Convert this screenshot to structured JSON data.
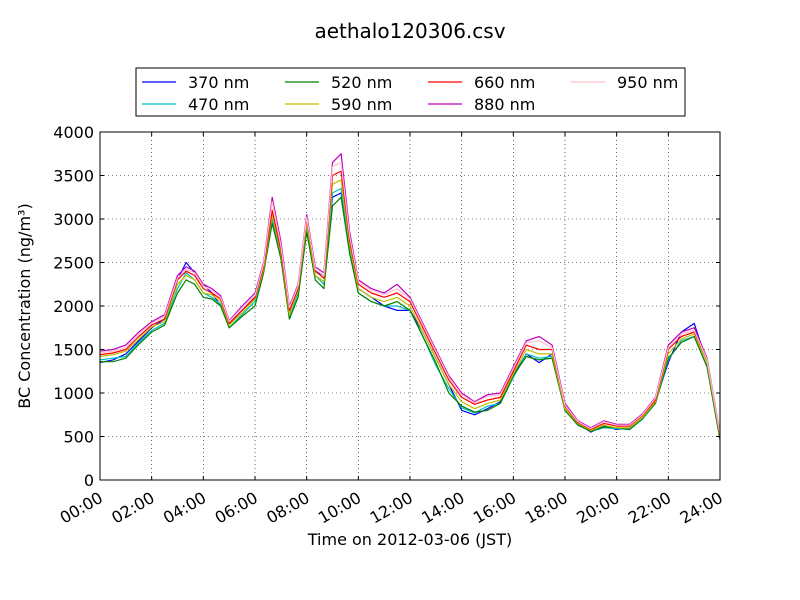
{
  "chart_data": {
    "type": "line",
    "title": "aethalo120306.csv",
    "xlabel": "Time on 2012-03-06 (JST)",
    "ylabel": "BC Concentration (ng/m³)",
    "xlim": [
      "00:00",
      "24:00"
    ],
    "ylim": [
      0,
      4000
    ],
    "grid": true,
    "legend_position": "top",
    "x_ticks": [
      "00:00",
      "02:00",
      "04:00",
      "06:00",
      "08:00",
      "10:00",
      "12:00",
      "14:00",
      "16:00",
      "18:00",
      "20:00",
      "22:00",
      "24:00"
    ],
    "y_ticks": [
      0,
      500,
      1000,
      1500,
      2000,
      2500,
      3000,
      3500,
      4000
    ],
    "x": [
      "00:00",
      "00:30",
      "01:00",
      "01:30",
      "02:00",
      "02:30",
      "03:00",
      "03:20",
      "03:40",
      "04:00",
      "04:20",
      "04:40",
      "05:00",
      "05:30",
      "06:00",
      "06:20",
      "06:40",
      "07:00",
      "07:20",
      "07:40",
      "08:00",
      "08:20",
      "08:40",
      "09:00",
      "09:20",
      "09:40",
      "10:00",
      "10:30",
      "11:00",
      "11:30",
      "12:00",
      "12:30",
      "13:00",
      "13:30",
      "14:00",
      "14:30",
      "15:00",
      "15:30",
      "16:00",
      "16:30",
      "17:00",
      "17:30",
      "18:00",
      "18:30",
      "19:00",
      "19:30",
      "20:00",
      "20:30",
      "21:00",
      "21:30",
      "22:00",
      "22:30",
      "23:00",
      "23:30",
      "24:00"
    ],
    "series": [
      {
        "name": "370 nm",
        "color": "#0000ff",
        "values": [
          1350,
          1380,
          1450,
          1600,
          1750,
          1850,
          2300,
          2500,
          2380,
          2250,
          2150,
          2000,
          1800,
          1950,
          2100,
          2500,
          2950,
          2650,
          1900,
          2200,
          2950,
          2400,
          2350,
          3250,
          3300,
          2700,
          2200,
          2100,
          2000,
          1950,
          1950,
          1700,
          1400,
          1100,
          800,
          750,
          820,
          900,
          1200,
          1450,
          1350,
          1450,
          800,
          650,
          550,
          620,
          580,
          600,
          700,
          900,
          1350,
          1700,
          1800,
          1350,
          500
        ]
      },
      {
        "name": "470 nm",
        "color": "#00bfbf",
        "values": [
          1380,
          1400,
          1420,
          1580,
          1720,
          1800,
          2200,
          2380,
          2300,
          2150,
          2100,
          2020,
          1750,
          1900,
          2050,
          2400,
          3000,
          2600,
          1850,
          2150,
          2900,
          2350,
          2250,
          3300,
          3350,
          2650,
          2150,
          2050,
          2000,
          2000,
          1950,
          1650,
          1320,
          1050,
          830,
          770,
          850,
          880,
          1180,
          1450,
          1400,
          1420,
          820,
          640,
          560,
          600,
          590,
          580,
          700,
          880,
          1380,
          1600,
          1650,
          1300,
          480
        ]
      },
      {
        "name": "520 nm",
        "color": "#008000",
        "values": [
          1360,
          1360,
          1400,
          1560,
          1700,
          1780,
          2150,
          2300,
          2250,
          2100,
          2080,
          2000,
          1750,
          1880,
          2000,
          2380,
          2950,
          2550,
          1850,
          2100,
          2850,
          2300,
          2200,
          3150,
          3250,
          2600,
          2150,
          2050,
          2000,
          2050,
          1950,
          1650,
          1350,
          1000,
          850,
          780,
          800,
          880,
          1200,
          1420,
          1380,
          1400,
          800,
          630,
          560,
          610,
          600,
          580,
          710,
          880,
          1400,
          1580,
          1650,
          1300,
          460
        ]
      },
      {
        "name": "590 nm",
        "color": "#bfbf00",
        "values": [
          1420,
          1440,
          1480,
          1620,
          1760,
          1820,
          2250,
          2350,
          2300,
          2150,
          2130,
          2050,
          1780,
          1920,
          2080,
          2420,
          3050,
          2620,
          1900,
          2180,
          2950,
          2350,
          2280,
          3400,
          3450,
          2700,
          2200,
          2100,
          2050,
          2100,
          2000,
          1700,
          1400,
          1100,
          900,
          820,
          880,
          920,
          1220,
          1500,
          1450,
          1450,
          820,
          650,
          570,
          630,
          600,
          600,
          720,
          900,
          1450,
          1620,
          1680,
          1350,
          500
        ]
      },
      {
        "name": "660 nm",
        "color": "#ff0000",
        "values": [
          1440,
          1460,
          1500,
          1650,
          1780,
          1850,
          2300,
          2400,
          2350,
          2200,
          2150,
          2080,
          1800,
          1950,
          2100,
          2450,
          3100,
          2650,
          1950,
          2200,
          3000,
          2400,
          2320,
          3500,
          3550,
          2750,
          2250,
          2150,
          2100,
          2150,
          2050,
          1750,
          1450,
          1150,
          950,
          870,
          920,
          950,
          1250,
          1550,
          1500,
          1500,
          850,
          660,
          580,
          650,
          620,
          620,
          740,
          920,
          1500,
          1650,
          1700,
          1380,
          520
        ]
      },
      {
        "name": "880 nm",
        "color": "#bf00bf",
        "values": [
          1480,
          1500,
          1550,
          1700,
          1820,
          1900,
          2350,
          2450,
          2400,
          2250,
          2200,
          2120,
          1830,
          2000,
          2150,
          2500,
          3250,
          2750,
          2000,
          2250,
          3050,
          2450,
          2380,
          3650,
          3750,
          2850,
          2300,
          2200,
          2150,
          2250,
          2100,
          1800,
          1500,
          1200,
          1000,
          900,
          980,
          1000,
          1300,
          1600,
          1650,
          1550,
          880,
          680,
          600,
          680,
          640,
          640,
          760,
          950,
          1550,
          1700,
          1750,
          1400,
          540
        ]
      },
      {
        "name": "950 nm",
        "color": "#ffc0cb",
        "values": [
          1460,
          1480,
          1520,
          1680,
          1800,
          1880,
          2320,
          2420,
          2380,
          2230,
          2180,
          2100,
          1820,
          1980,
          2120,
          2480,
          3200,
          2700,
          1980,
          2230,
          3020,
          2420,
          2350,
          3600,
          3650,
          2800,
          2280,
          2180,
          2130,
          2200,
          2080,
          1780,
          1480,
          1180,
          980,
          890,
          960,
          980,
          1280,
          1580,
          1600,
          1520,
          860,
          670,
          590,
          670,
          630,
          630,
          750,
          940,
          1520,
          1680,
          1720,
          1380,
          530
        ]
      }
    ]
  }
}
